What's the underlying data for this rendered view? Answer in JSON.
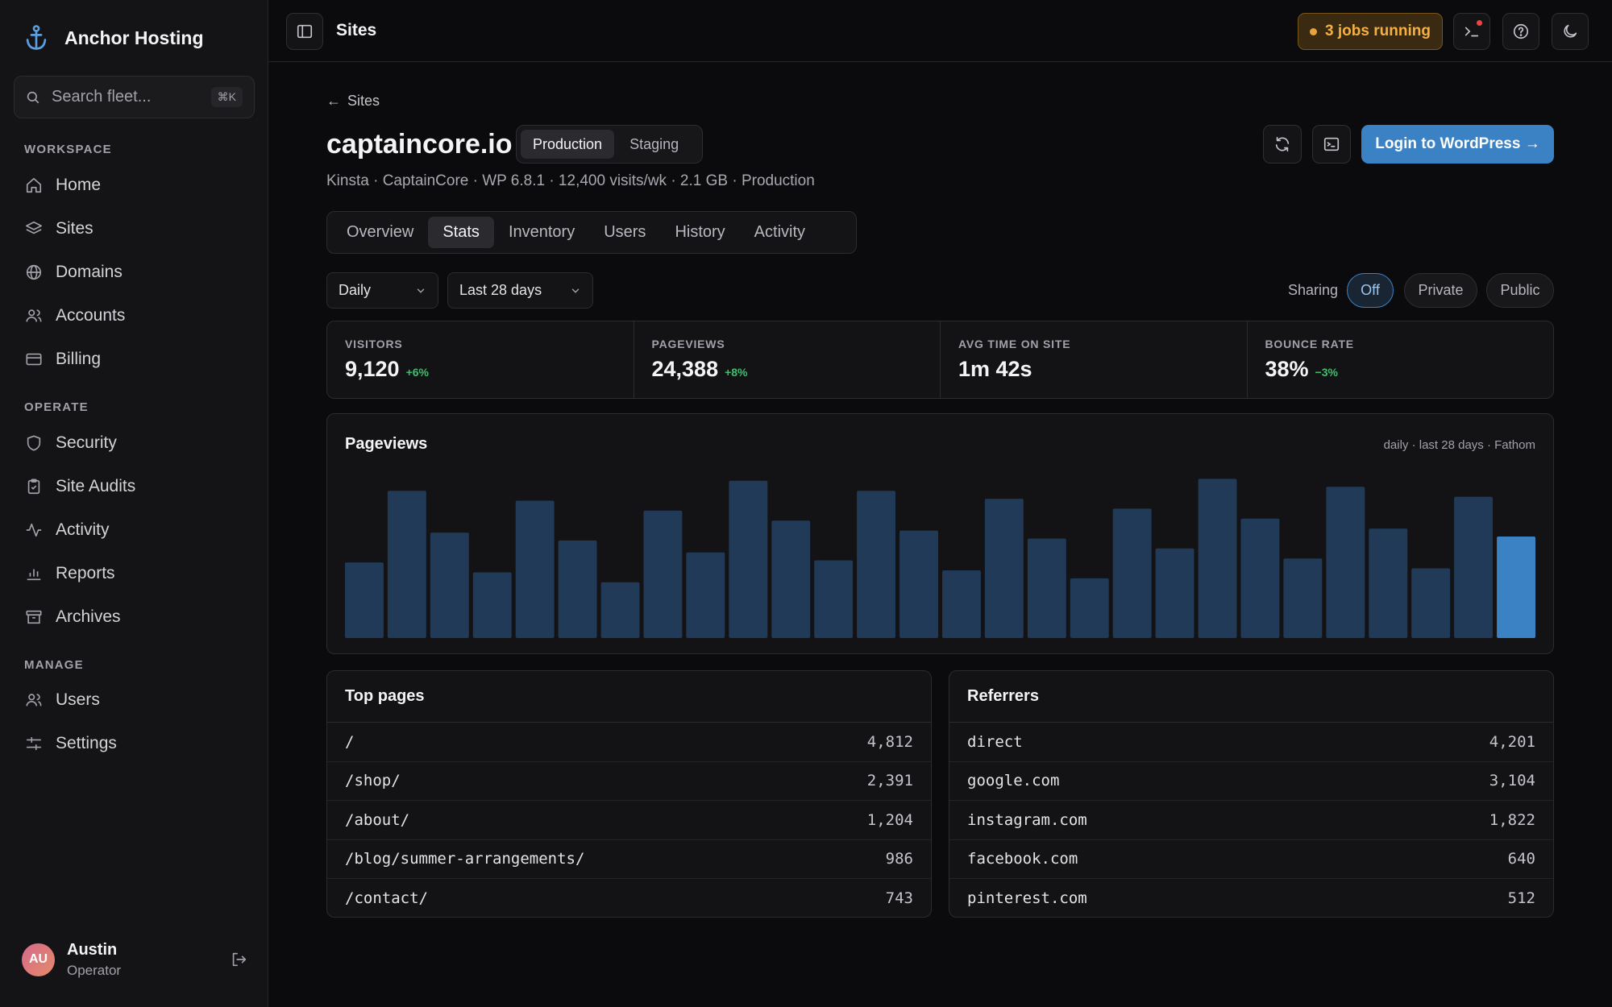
{
  "brand": {
    "name": "Anchor Hosting"
  },
  "search": {
    "placeholder": "Search fleet...",
    "shortcut": "⌘K"
  },
  "sidebar": {
    "sections": [
      {
        "label": "WORKSPACE",
        "items": [
          {
            "label": "Home",
            "icon": "home-icon"
          },
          {
            "label": "Sites",
            "icon": "layers-icon"
          },
          {
            "label": "Domains",
            "icon": "globe-icon"
          },
          {
            "label": "Accounts",
            "icon": "users-icon"
          },
          {
            "label": "Billing",
            "icon": "credit-card-icon"
          }
        ]
      },
      {
        "label": "OPERATE",
        "items": [
          {
            "label": "Security",
            "icon": "shield-icon"
          },
          {
            "label": "Site Audits",
            "icon": "clipboard-icon"
          },
          {
            "label": "Activity",
            "icon": "activity-icon"
          },
          {
            "label": "Reports",
            "icon": "bar-chart-icon"
          },
          {
            "label": "Archives",
            "icon": "archive-icon"
          }
        ]
      },
      {
        "label": "MANAGE",
        "items": [
          {
            "label": "Users",
            "icon": "users-icon"
          },
          {
            "label": "Settings",
            "icon": "sliders-icon"
          }
        ]
      }
    ]
  },
  "user": {
    "initials": "AU",
    "name": "Austin",
    "role": "Operator"
  },
  "topbar": {
    "title": "Sites",
    "jobs": "3 jobs running"
  },
  "page": {
    "back": "Sites",
    "site_title": "captaincore.io",
    "env_options": [
      "Production",
      "Staging"
    ],
    "env_selected": "Production",
    "meta": "Kinsta · CaptainCore · WP 6.8.1 · 12,400 visits/wk · 2.1 GB · Production",
    "login_button": "Login to WordPress →",
    "tabs": [
      "Overview",
      "Stats",
      "Inventory",
      "Users",
      "History",
      "Activity"
    ],
    "active_tab": "Stats"
  },
  "filters": {
    "interval": "Daily",
    "range": "Last 28 days",
    "sharing_label": "Sharing",
    "sharing_options": [
      "Off",
      "Private",
      "Public"
    ],
    "sharing_selected": "Off"
  },
  "stats": [
    {
      "label": "VISITORS",
      "value": "9,120",
      "delta": "+6%"
    },
    {
      "label": "PAGEVIEWS",
      "value": "24,388",
      "delta": "+8%"
    },
    {
      "label": "AVG TIME ON SITE",
      "value": "1m 42s",
      "delta": ""
    },
    {
      "label": "BOUNCE RATE",
      "value": "38%",
      "delta": "−3%"
    }
  ],
  "chart": {
    "title": "Pageviews",
    "subtitle": "daily · last 28 days · Fathom"
  },
  "chart_data": {
    "type": "bar",
    "title": "Pageviews",
    "xlabel": "",
    "ylabel": "",
    "values": [
      38,
      74,
      53,
      33,
      69,
      49,
      28,
      64,
      43,
      79,
      59,
      39,
      74,
      54,
      34,
      70,
      50,
      30,
      65,
      45,
      80,
      60,
      40,
      76,
      55,
      35,
      71,
      51
    ],
    "highlight_index": 27,
    "colors": {
      "bar": "#213a57",
      "highlight": "#3b82c4"
    },
    "grid": false,
    "legend": "none"
  },
  "top_pages": {
    "title": "Top pages",
    "rows": [
      {
        "k": "/",
        "v": "4,812"
      },
      {
        "k": "/shop/",
        "v": "2,391"
      },
      {
        "k": "/about/",
        "v": "1,204"
      },
      {
        "k": "/blog/summer-arrangements/",
        "v": "986"
      },
      {
        "k": "/contact/",
        "v": "743"
      }
    ]
  },
  "referrers": {
    "title": "Referrers",
    "rows": [
      {
        "k": "direct",
        "v": "4,201"
      },
      {
        "k": "google.com",
        "v": "3,104"
      },
      {
        "k": "instagram.com",
        "v": "1,822"
      },
      {
        "k": "facebook.com",
        "v": "640"
      },
      {
        "k": "pinterest.com",
        "v": "512"
      }
    ]
  },
  "colors": {
    "accent": "#3b82c4",
    "jobs": "#f5b041",
    "positive": "#3fbf6e"
  }
}
